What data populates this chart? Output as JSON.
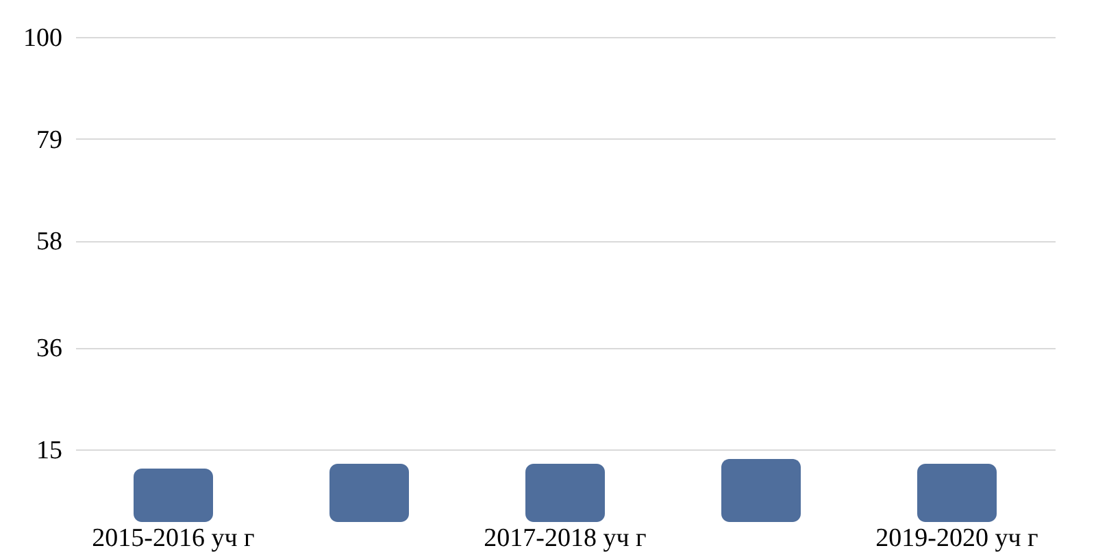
{
  "chart_data": {
    "type": "bar",
    "categories": [
      "2015-2016 уч г",
      null,
      "2017-2018 уч г",
      null,
      "2019-2020 уч г"
    ],
    "values": [
      11,
      12,
      12,
      13,
      12
    ],
    "color": "#4f6e9c",
    "ylim": [
      0,
      100
    ],
    "yticks": [
      15,
      36,
      58,
      79,
      100
    ],
    "grid": "y"
  }
}
